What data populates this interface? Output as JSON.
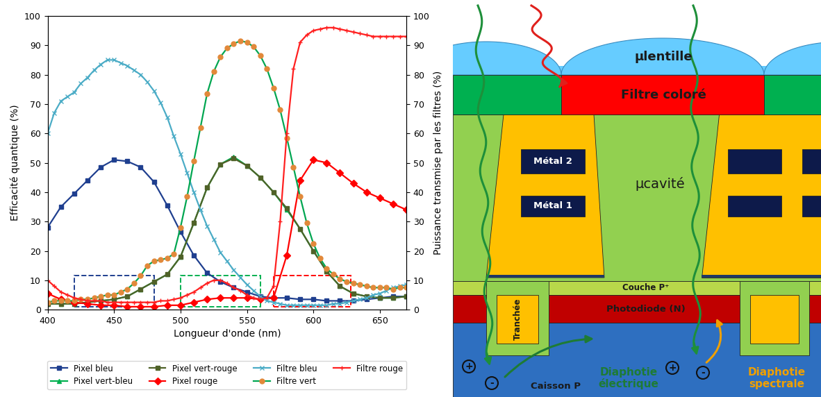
{
  "chart_data": {
    "type": "line",
    "x_label": "Longueur d'onde (nm)",
    "y_label": "Efficacité quantique (%)",
    "y2_label": "Puissance transmise par les filtres (%)",
    "xlim": [
      400,
      670
    ],
    "xticks": [
      400,
      450,
      500,
      550,
      600,
      650
    ],
    "ylim": [
      0,
      100
    ],
    "yticks": [
      0,
      10,
      20,
      30,
      40,
      50,
      60,
      70,
      80,
      90,
      100
    ],
    "y2lim": [
      0,
      100
    ],
    "y2ticks": [
      0,
      10,
      20,
      30,
      40,
      50,
      60,
      70,
      80,
      90,
      100
    ],
    "legend": "upper center",
    "series": [
      {
        "name": "Pixel bleu",
        "color": "#1f3f8f",
        "marker": "square",
        "line_style": "solid",
        "x": [
          400,
          410,
          420,
          430,
          440,
          450,
          460,
          470,
          480,
          490,
          500,
          510,
          520,
          530,
          540,
          550,
          560,
          570,
          580,
          590,
          600,
          610,
          620,
          630,
          640,
          650,
          660,
          670
        ],
        "values": [
          28,
          35,
          39.5,
          44,
          48.5,
          51,
          50.5,
          48.5,
          43.5,
          35.5,
          26.5,
          18.5,
          12.5,
          9.5,
          7.5,
          6,
          4.5,
          4,
          4,
          3.5,
          3.5,
          3,
          3,
          3,
          3.5,
          4,
          4.5,
          4.5
        ]
      },
      {
        "name": "Pixel vert-bleu",
        "color": "#00b050",
        "marker": "triangle",
        "line_style": "solid",
        "x": [
          400,
          410,
          420,
          430,
          440,
          450,
          460,
          470,
          480,
          490,
          500,
          510,
          520,
          530,
          540,
          550,
          560,
          570,
          580,
          590,
          600,
          610,
          620,
          630,
          640,
          650,
          660,
          670
        ],
        "values": [
          2,
          2,
          2,
          2.5,
          3,
          3.5,
          4.5,
          7,
          9.5,
          12,
          18,
          29.5,
          41.5,
          49.5,
          52,
          49,
          45,
          40,
          34,
          27.5,
          20,
          13,
          8,
          5.5,
          4.5,
          4,
          4,
          4.5
        ]
      },
      {
        "name": "Pixel vert-rouge",
        "color": "#4f6228",
        "marker": "square",
        "line_style": "solid",
        "x": [
          400,
          410,
          420,
          430,
          440,
          450,
          460,
          470,
          480,
          490,
          500,
          510,
          520,
          530,
          540,
          550,
          560,
          570,
          580,
          590,
          600,
          610,
          620,
          630,
          640,
          650,
          660,
          670
        ],
        "values": [
          2,
          2,
          2,
          2.5,
          3,
          3.5,
          4.5,
          7,
          9.5,
          12,
          18,
          29.5,
          41.5,
          49.5,
          51.5,
          49,
          45,
          40,
          34.5,
          27.5,
          20,
          13,
          8,
          5.5,
          4.5,
          4,
          4,
          4.5
        ]
      },
      {
        "name": "Pixel rouge",
        "color": "#ff0000",
        "marker": "diamond",
        "line_style": "solid",
        "x": [
          400,
          410,
          420,
          430,
          440,
          450,
          460,
          470,
          480,
          490,
          500,
          510,
          520,
          530,
          540,
          550,
          560,
          570,
          580,
          590,
          600,
          610,
          620,
          630,
          640,
          650,
          660,
          670
        ],
        "values": [
          5.5,
          3.5,
          2.5,
          2,
          1.5,
          1.5,
          1,
          1,
          1,
          1.5,
          1.5,
          2.5,
          3.5,
          4,
          4,
          4,
          3.5,
          4,
          18.5,
          44,
          51,
          50,
          46.5,
          43,
          40,
          38,
          36,
          34
        ]
      },
      {
        "name": "Filtre bleu",
        "color": "#4bacc6",
        "marker": "x",
        "line_style": "solid",
        "axis": "y2",
        "x": [
          400,
          405,
          410,
          415,
          420,
          425,
          430,
          435,
          440,
          445,
          450,
          455,
          460,
          465,
          470,
          475,
          480,
          485,
          490,
          495,
          500,
          505,
          510,
          515,
          520,
          525,
          530,
          535,
          540,
          545,
          550,
          555,
          560,
          565,
          570,
          575,
          580,
          585,
          590,
          595,
          600,
          605,
          610,
          615,
          620,
          625,
          630,
          635,
          640,
          645,
          650,
          655,
          660,
          665,
          670
        ],
        "values": [
          60,
          67,
          71,
          72.5,
          74,
          77,
          79,
          81.5,
          83.5,
          85,
          85,
          84,
          83,
          81.5,
          80,
          77.5,
          74.5,
          70.5,
          65.5,
          59,
          53,
          46.5,
          40,
          34,
          28.5,
          24,
          19.5,
          16.5,
          13.5,
          11,
          8.5,
          6.5,
          4.5,
          3,
          2.5,
          2,
          1.5,
          1.5,
          1.5,
          1.5,
          1.5,
          1.5,
          1.5,
          2,
          2,
          2.5,
          3,
          3.5,
          4,
          5,
          5.5,
          6.5,
          7.5,
          8,
          8.5
        ]
      },
      {
        "name": "Filtre vert",
        "color": "#00a651",
        "marker": "circle",
        "line_style": "solid",
        "axis": "y2",
        "x": [
          400,
          405,
          410,
          415,
          420,
          425,
          430,
          435,
          440,
          445,
          450,
          455,
          460,
          465,
          470,
          475,
          480,
          485,
          490,
          495,
          500,
          505,
          510,
          515,
          520,
          525,
          530,
          535,
          540,
          545,
          550,
          555,
          560,
          565,
          570,
          575,
          580,
          585,
          590,
          595,
          600,
          605,
          610,
          615,
          620,
          625,
          630,
          635,
          640,
          645,
          650,
          655,
          660,
          665,
          670
        ],
        "values": [
          2.5,
          3,
          3,
          3,
          3,
          3.5,
          3.5,
          4,
          4.5,
          5,
          5,
          6,
          7,
          9,
          11.5,
          15,
          16.5,
          17,
          17.5,
          19,
          28,
          38.5,
          50.5,
          62,
          73.5,
          81,
          86,
          89,
          90.5,
          91.5,
          91,
          89.5,
          86.5,
          82,
          75.5,
          68,
          58.5,
          48.5,
          38.5,
          29.5,
          22.5,
          17.5,
          14,
          12,
          10.5,
          9.5,
          9,
          8.5,
          8,
          7.5,
          7.5,
          7.5,
          7,
          7.5,
          7.5
        ]
      },
      {
        "name": "Filtre rouge",
        "color": "#ff2020",
        "marker": "plus",
        "line_style": "solid",
        "axis": "y2",
        "x": [
          400,
          405,
          410,
          415,
          420,
          425,
          430,
          435,
          440,
          445,
          450,
          455,
          460,
          465,
          470,
          475,
          480,
          485,
          490,
          495,
          500,
          505,
          510,
          515,
          520,
          525,
          530,
          535,
          540,
          545,
          550,
          555,
          560,
          565,
          570,
          575,
          580,
          585,
          590,
          595,
          600,
          605,
          610,
          615,
          620,
          625,
          630,
          635,
          640,
          645,
          650,
          655,
          660,
          665,
          670
        ],
        "values": [
          10,
          8,
          6,
          5,
          4,
          3.5,
          3,
          3,
          3,
          2.5,
          2.5,
          2.5,
          2.5,
          2.5,
          2.5,
          2.5,
          2.5,
          3,
          3,
          3.5,
          4,
          5,
          6,
          7.5,
          9,
          10,
          10,
          9,
          7.5,
          6.5,
          5,
          4,
          3.5,
          4,
          8,
          30,
          60,
          82,
          91,
          93.5,
          95,
          95.5,
          96,
          96,
          95.5,
          95,
          94.5,
          94,
          93.5,
          93,
          93,
          93,
          93,
          93,
          93
        ]
      }
    ],
    "regions": [
      {
        "x": [
          420,
          480
        ],
        "y": [
          1,
          11.5
        ],
        "color": "#1f3f8f"
      },
      {
        "x": [
          500,
          560
        ],
        "y": [
          1,
          11.5
        ],
        "color": "#00b050"
      },
      {
        "x": [
          570,
          628
        ],
        "y": [
          1,
          11.5
        ],
        "color": "#ff0000"
      }
    ]
  },
  "diagram": {
    "labels": {
      "microlens": "µlentille",
      "filter": "Filtre coloré",
      "metal2": "Métal 2",
      "metal1": "Métal 1",
      "cavity": "µcavité",
      "p_layer": "Couche P⁺",
      "photodiode": "Photodiode (N)",
      "trench": "Tranchée",
      "well": "Caisson P",
      "electrical": "Diaphotie\nélectrique",
      "spectral": "Diaphotie\nspectrale"
    },
    "charges": [
      "+",
      "-"
    ]
  }
}
